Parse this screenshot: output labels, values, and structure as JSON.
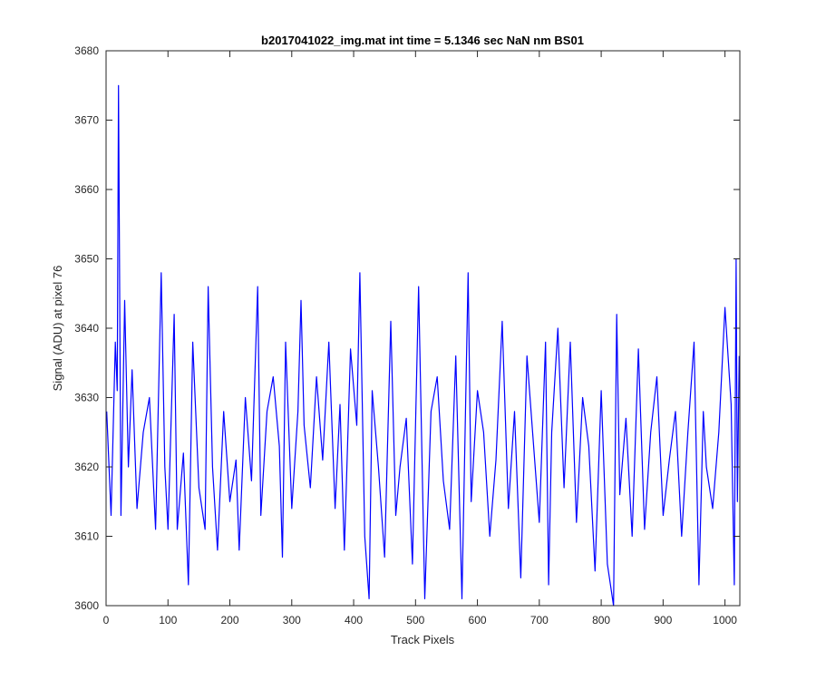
{
  "chart_data": {
    "type": "line",
    "title": "b2017041022_img.mat int time = 5.1346 sec  NaN nm BS01",
    "xlabel": "Track Pixels",
    "ylabel": "Signal (ADU) at pixel 76",
    "xlim": [
      0,
      1024
    ],
    "ylim": [
      3600,
      3680
    ],
    "xticks": [
      0,
      100,
      200,
      300,
      400,
      500,
      600,
      700,
      800,
      900,
      1000
    ],
    "yticks": [
      3600,
      3610,
      3620,
      3630,
      3640,
      3650,
      3660,
      3670,
      3680
    ],
    "grid": false,
    "line_color": "#0000ff",
    "series": [
      {
        "x": [
          1,
          8,
          15,
          18,
          20,
          24,
          30,
          36,
          42,
          50,
          60,
          70,
          80,
          89,
          95,
          100,
          110,
          115,
          125,
          133,
          140,
          150,
          160,
          165,
          172,
          180,
          190,
          200,
          210,
          215,
          225,
          235,
          245,
          250,
          260,
          270,
          280,
          285,
          290,
          300,
          310,
          315,
          320,
          330,
          340,
          350,
          360,
          370,
          378,
          385,
          395,
          405,
          410,
          418,
          425,
          430,
          440,
          450,
          460,
          468,
          475,
          485,
          495,
          505,
          515,
          525,
          535,
          545,
          555,
          565,
          575,
          585,
          590,
          600,
          610,
          620,
          630,
          640,
          650,
          660,
          670,
          680,
          690,
          700,
          710,
          715,
          720,
          730,
          740,
          750,
          760,
          770,
          780,
          790,
          800,
          810,
          820,
          825,
          830,
          840,
          850,
          860,
          870,
          880,
          890,
          900,
          910,
          920,
          930,
          940,
          950,
          958,
          965,
          970,
          980,
          990,
          1000,
          1010,
          1015,
          1018,
          1020,
          1023
        ],
        "y": [
          3628,
          3613,
          3638,
          3631,
          3675,
          3613,
          3644,
          3620,
          3634,
          3614,
          3625,
          3630,
          3611,
          3648,
          3620,
          3611,
          3642,
          3611,
          3622,
          3603,
          3638,
          3617,
          3611,
          3646,
          3620,
          3608,
          3628,
          3615,
          3621,
          3608,
          3630,
          3618,
          3646,
          3613,
          3628,
          3633,
          3623,
          3607,
          3638,
          3614,
          3628,
          3644,
          3626,
          3617,
          3633,
          3621,
          3638,
          3614,
          3629,
          3608,
          3637,
          3626,
          3648,
          3610,
          3601,
          3631,
          3620,
          3607,
          3641,
          3613,
          3620,
          3627,
          3606,
          3646,
          3601,
          3628,
          3633,
          3618,
          3611,
          3636,
          3601,
          3648,
          3615,
          3631,
          3625,
          3610,
          3621,
          3641,
          3614,
          3628,
          3604,
          3636,
          3624,
          3612,
          3638,
          3603,
          3625,
          3640,
          3617,
          3638,
          3612,
          3630,
          3623,
          3605,
          3631,
          3606,
          3600,
          3642,
          3616,
          3627,
          3610,
          3637,
          3611,
          3625,
          3633,
          3613,
          3621,
          3628,
          3610,
          3625,
          3638,
          3603,
          3628,
          3620,
          3614,
          3625,
          3643,
          3629,
          3603,
          3650,
          3615,
          3636
        ]
      }
    ]
  }
}
